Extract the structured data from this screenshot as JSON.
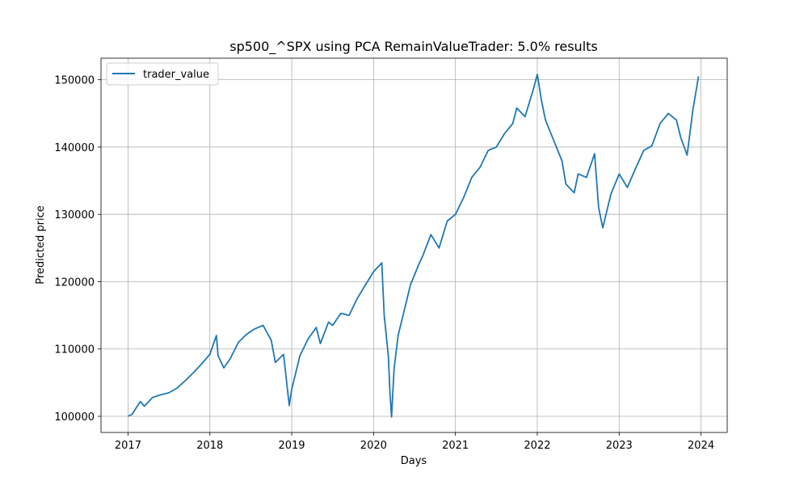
{
  "chart_data": {
    "type": "line",
    "title": "sp500_^SPX using PCA RemainValueTrader: 5.0% results",
    "xlabel": "Days",
    "ylabel": "Predicted price",
    "x_ticks": [
      "2017",
      "2018",
      "2019",
      "2020",
      "2021",
      "2022",
      "2023",
      "2024"
    ],
    "y_ticks": [
      "100000",
      "110000",
      "120000",
      "130000",
      "140000",
      "150000"
    ],
    "xlim": [
      2016.67,
      2024.32
    ],
    "ylim": [
      97600,
      153200
    ],
    "grid": true,
    "legend_position": "top-left",
    "series": [
      {
        "name": "trader_value",
        "color": "#1f77b4",
        "x": [
          2017.0,
          2017.05,
          2017.15,
          2017.2,
          2017.3,
          2017.4,
          2017.5,
          2017.6,
          2017.7,
          2017.8,
          2017.9,
          2018.0,
          2018.08,
          2018.1,
          2018.17,
          2018.25,
          2018.35,
          2018.45,
          2018.55,
          2018.65,
          2018.75,
          2018.8,
          2018.9,
          2018.97,
          2019.0,
          2019.1,
          2019.2,
          2019.3,
          2019.35,
          2019.45,
          2019.5,
          2019.6,
          2019.7,
          2019.8,
          2019.9,
          2020.0,
          2020.1,
          2020.13,
          2020.18,
          2020.2,
          2020.22,
          2020.25,
          2020.3,
          2020.4,
          2020.45,
          2020.55,
          2020.6,
          2020.7,
          2020.8,
          2020.9,
          2021.0,
          2021.1,
          2021.2,
          2021.3,
          2021.4,
          2021.5,
          2021.6,
          2021.7,
          2021.75,
          2021.85,
          2021.95,
          2022.0,
          2022.05,
          2022.1,
          2022.2,
          2022.3,
          2022.35,
          2022.45,
          2022.5,
          2022.6,
          2022.7,
          2022.75,
          2022.8,
          2022.9,
          2023.0,
          2023.1,
          2023.2,
          2023.3,
          2023.4,
          2023.5,
          2023.6,
          2023.7,
          2023.75,
          2023.83,
          2023.9,
          2023.97
        ],
        "values": [
          100000,
          100300,
          102200,
          101500,
          102800,
          103200,
          103500,
          104200,
          105300,
          106500,
          107800,
          109200,
          112000,
          109000,
          107200,
          108600,
          111000,
          112200,
          113000,
          113500,
          111300,
          108000,
          109200,
          101600,
          104000,
          109000,
          111500,
          113200,
          110800,
          114000,
          113500,
          115300,
          115000,
          117500,
          119500,
          121500,
          122800,
          115000,
          109000,
          103500,
          99900,
          107000,
          112000,
          117000,
          119500,
          122500,
          123800,
          127000,
          125000,
          129000,
          130000,
          132500,
          135500,
          137000,
          139500,
          140000,
          142000,
          143500,
          145800,
          144500,
          148500,
          150800,
          147000,
          144000,
          141000,
          138000,
          134500,
          133200,
          136000,
          135500,
          139000,
          131000,
          128000,
          133000,
          136000,
          134000,
          136800,
          139500,
          140200,
          143500,
          145000,
          144000,
          141500,
          138800,
          145500,
          150500
        ]
      }
    ]
  }
}
